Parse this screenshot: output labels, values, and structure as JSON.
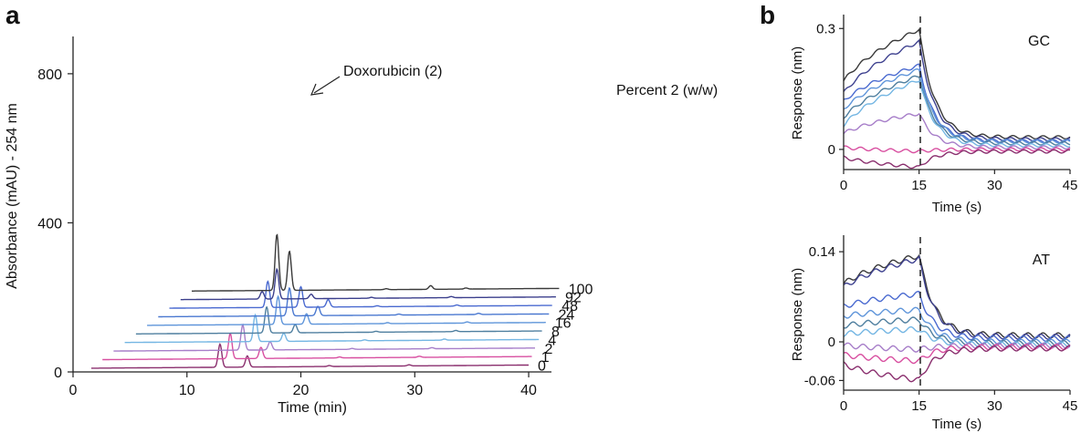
{
  "panels": [
    {
      "label": "a"
    },
    {
      "label": "b"
    }
  ],
  "chart_data": [
    {
      "type": "line",
      "panel": "a",
      "title": "",
      "xlabel": "Time (min)",
      "ylabel": "Absorbance (mAU) - 254 nm",
      "xlim": [
        0,
        42
      ],
      "ylim": [
        0,
        900
      ],
      "xticks": [
        0,
        10,
        20,
        30,
        40
      ],
      "yticks": [
        0,
        400,
        800
      ],
      "legend_title": "Percent 2 (w/w)",
      "annotation": "Doxorubicin (2)",
      "series": [
        {
          "name": "0",
          "color": "#8a2f6e",
          "peaks": [
            {
              "t": 12.9,
              "h": 62
            },
            {
              "t": 15.3,
              "h": 30
            }
          ]
        },
        {
          "name": "1",
          "color": "#d84fa0",
          "peaks": [
            {
              "t": 13.8,
              "h": 68
            },
            {
              "t": 16.5,
              "h": 30
            }
          ]
        },
        {
          "name": "2",
          "color": "#a77ec9",
          "peaks": [
            {
              "t": 14.9,
              "h": 68
            },
            {
              "t": 17.3,
              "h": 22
            }
          ]
        },
        {
          "name": "4",
          "color": "#74b6e3",
          "peaks": [
            {
              "t": 16.0,
              "h": 72
            },
            {
              "t": 18.5,
              "h": 22
            }
          ]
        },
        {
          "name": "8",
          "color": "#4f7f9f",
          "peaks": [
            {
              "t": 17.0,
              "h": 70
            },
            {
              "t": 19.5,
              "h": 22
            }
          ]
        },
        {
          "name": "16",
          "color": "#5f95da",
          "peaks": [
            {
              "t": 18.0,
              "h": 75
            },
            {
              "t": 20.5,
              "h": 28
            }
          ]
        },
        {
          "name": "24",
          "color": "#4a78d0",
          "peaks": [
            {
              "t": 19.0,
              "h": 75
            },
            {
              "t": 21.5,
              "h": 25
            }
          ]
        },
        {
          "name": "48",
          "color": "#4a6ad0",
          "peaks": [
            {
              "t": 17.1,
              "h": 70
            },
            {
              "t": 20.0,
              "h": 55
            },
            {
              "t": 22.4,
              "h": 20
            }
          ]
        },
        {
          "name": "92",
          "color": "#3b3f8c",
          "peaks": [
            {
              "t": 16.6,
              "h": 20
            },
            {
              "t": 17.9,
              "h": 80
            },
            {
              "t": 20.9,
              "h": 12
            }
          ]
        },
        {
          "name": "100",
          "color": "#3a3a3a",
          "peaks": [
            {
              "t": 17.9,
              "h": 150
            },
            {
              "t": 19.0,
              "h": 105
            },
            {
              "t": 31.4,
              "h": 10
            }
          ]
        }
      ]
    },
    {
      "type": "line",
      "panel": "b-top",
      "title": "",
      "annotation": "GC",
      "xlabel": "Time (s)",
      "ylabel": "Response (nm)",
      "xlim": [
        0,
        45
      ],
      "ylim": [
        -0.05,
        0.33
      ],
      "xticks": [
        0,
        15,
        30,
        45
      ],
      "yticks": [
        0,
        0.3
      ],
      "ytick_labels": [
        "0",
        "0.3"
      ],
      "series": [
        {
          "color": "#3a3a3a",
          "assoc": [
            0.17,
            0.3
          ],
          "end": 0.03
        },
        {
          "color": "#3e418f",
          "assoc": [
            0.14,
            0.27
          ],
          "end": 0.025
        },
        {
          "color": "#4a6ad0",
          "assoc": [
            0.12,
            0.21
          ],
          "end": 0.02
        },
        {
          "color": "#5f95da",
          "assoc": [
            0.1,
            0.2
          ],
          "end": 0.02
        },
        {
          "color": "#4f7f9f",
          "assoc": [
            0.08,
            0.185
          ],
          "end": 0.015
        },
        {
          "color": "#74b6e3",
          "assoc": [
            0.06,
            0.175
          ],
          "end": 0.01
        },
        {
          "color": "#a77ec9",
          "assoc": [
            0.04,
            0.09
          ],
          "end": 0.005
        },
        {
          "color": "#d84fa0",
          "assoc": [
            0.005,
            -0.005
          ],
          "end": 0.0
        },
        {
          "color": "#8a2f6e",
          "assoc": [
            -0.02,
            -0.045
          ],
          "end": -0.005
        }
      ]
    },
    {
      "type": "line",
      "panel": "b-bottom",
      "title": "",
      "annotation": "AT",
      "xlabel": "Time (s)",
      "ylabel": "Response (nm)",
      "xlim": [
        0,
        45
      ],
      "ylim": [
        -0.075,
        0.16
      ],
      "xticks": [
        0,
        15,
        30,
        45
      ],
      "yticks": [
        -0.06,
        0,
        0.14
      ],
      "ytick_labels": [
        "-0.06",
        "0",
        "0.14"
      ],
      "series": [
        {
          "color": "#3a3a3a",
          "assoc": [
            0.09,
            0.135
          ],
          "end": 0.01
        },
        {
          "color": "#3e418f",
          "assoc": [
            0.085,
            0.13
          ],
          "end": 0.008
        },
        {
          "color": "#4a6ad0",
          "assoc": [
            0.055,
            0.075
          ],
          "end": 0.005
        },
        {
          "color": "#5f95da",
          "assoc": [
            0.04,
            0.05
          ],
          "end": 0.0
        },
        {
          "color": "#4f7f9f",
          "assoc": [
            0.025,
            0.035
          ],
          "end": -0.002
        },
        {
          "color": "#74b6e3",
          "assoc": [
            0.012,
            0.02
          ],
          "end": -0.004
        },
        {
          "color": "#a77ec9",
          "assoc": [
            -0.005,
            -0.012
          ],
          "end": -0.006
        },
        {
          "color": "#d84fa0",
          "assoc": [
            -0.02,
            -0.03
          ],
          "end": -0.008
        },
        {
          "color": "#8a2f6e",
          "assoc": [
            -0.035,
            -0.06
          ],
          "end": -0.01
        }
      ]
    }
  ]
}
